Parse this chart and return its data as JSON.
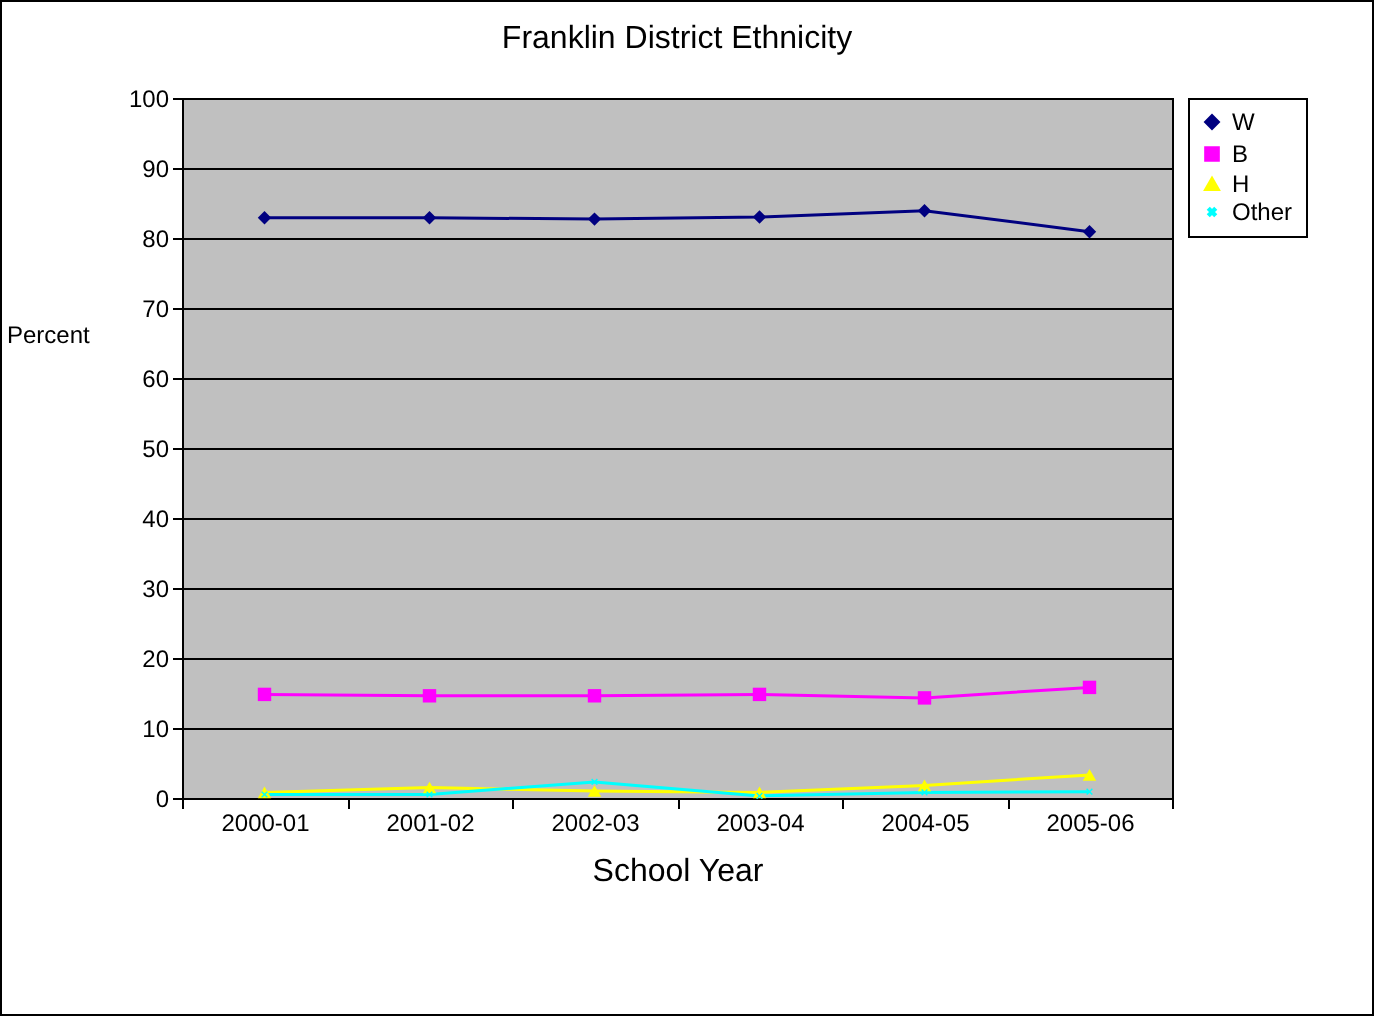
{
  "chart_data": {
    "type": "line",
    "title": "Franklin District Ethnicity",
    "xlabel": "School Year",
    "ylabel": "Percent",
    "categories": [
      "2000-01",
      "2001-02",
      "2002-03",
      "2003-04",
      "2004-05",
      "2005-06"
    ],
    "series": [
      {
        "name": "W",
        "color": "#000080",
        "marker": "diamond",
        "values": [
          82.9,
          82.9,
          82.7,
          83.0,
          83.9,
          80.9
        ]
      },
      {
        "name": "B",
        "color": "#ff00ff",
        "marker": "square",
        "values": [
          14.8,
          14.6,
          14.6,
          14.8,
          14.3,
          15.8
        ]
      },
      {
        "name": "H",
        "color": "#ffff00",
        "marker": "triangle",
        "values": [
          0.8,
          1.5,
          1.0,
          0.8,
          1.8,
          3.3
        ]
      },
      {
        "name": "Other",
        "color": "#00ffff",
        "marker": "cross",
        "values": [
          0.5,
          0.5,
          2.3,
          0.3,
          0.8,
          0.9
        ]
      }
    ],
    "ylim": [
      0,
      100
    ],
    "yticks": [
      0,
      10,
      20,
      30,
      40,
      50,
      60,
      70,
      80,
      90,
      100
    ],
    "grid": "y",
    "legend": "right"
  }
}
